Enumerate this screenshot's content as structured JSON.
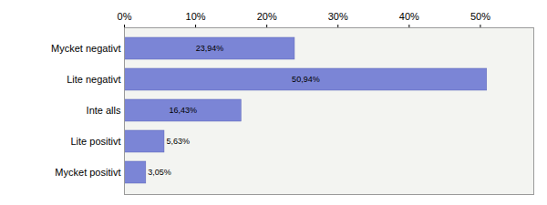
{
  "chart_data": {
    "type": "bar",
    "orientation": "horizontal",
    "categories": [
      "Mycket negativt",
      "Lite negativt",
      "Inte alls",
      "Lite positivt",
      "Mycket positivt"
    ],
    "values": [
      23.94,
      50.94,
      16.43,
      5.63,
      3.05
    ],
    "value_labels": [
      "23,94%",
      "50,94%",
      "16,43%",
      "5,63%",
      "3,05%"
    ],
    "data_labels": true,
    "color": "#7b85d6",
    "xlim": [
      0,
      57.5
    ],
    "xticks": [
      {
        "value": 0,
        "label": "0%"
      },
      {
        "value": 10,
        "label": "10%"
      },
      {
        "value": 20,
        "label": "20%"
      },
      {
        "value": 30,
        "label": "30%"
      },
      {
        "value": 40,
        "label": "40%"
      },
      {
        "value": 50,
        "label": "50%"
      }
    ],
    "grid": true
  }
}
